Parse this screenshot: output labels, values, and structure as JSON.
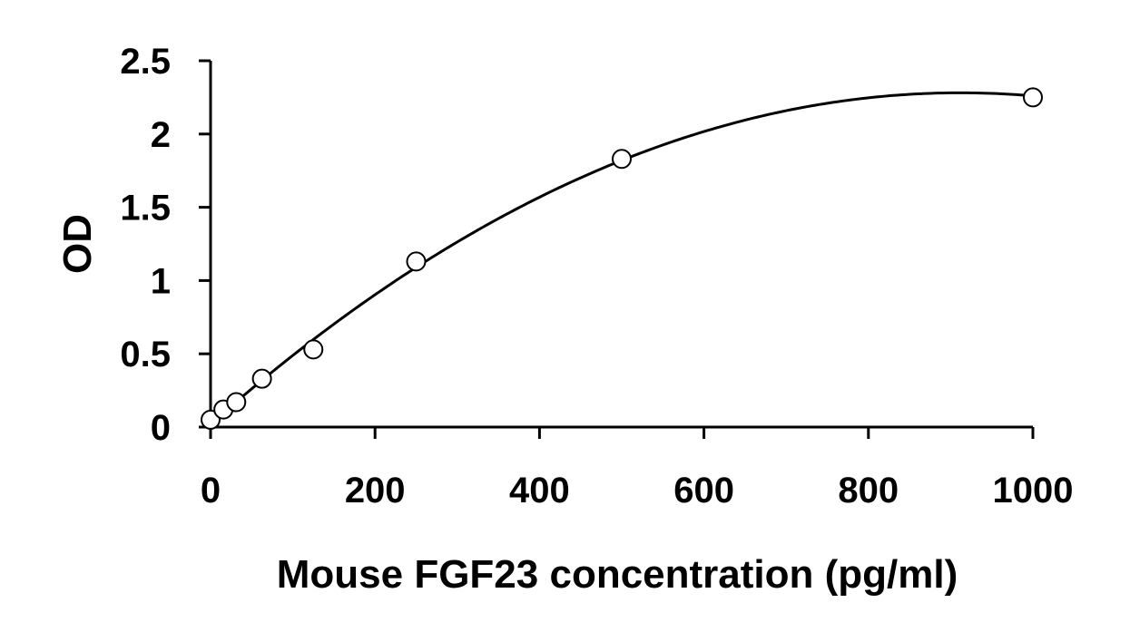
{
  "chart_data": {
    "type": "scatter",
    "title": "",
    "xlabel": "Mouse FGF23 concentration (pg/ml)",
    "ylabel": "OD",
    "xlim": [
      0,
      1000
    ],
    "ylim": [
      0,
      2.5
    ],
    "x_ticks": [
      0,
      200,
      400,
      600,
      800,
      1000
    ],
    "y_ticks": [
      0,
      0.5,
      1,
      1.5,
      2,
      2.5
    ],
    "x_tick_labels": [
      "0",
      "200",
      "400",
      "600",
      "800",
      "1000"
    ],
    "y_tick_labels": [
      "0",
      "0.5",
      "1",
      "1.5",
      "2",
      "2.5"
    ],
    "grid": false,
    "legend": false,
    "series": [
      {
        "marker": "open-circle",
        "x": [
          0,
          15.6,
          31.2,
          62.5,
          125,
          250,
          500,
          1000
        ],
        "y": [
          0.05,
          0.12,
          0.17,
          0.33,
          0.53,
          1.13,
          1.83,
          2.25
        ]
      }
    ],
    "fit_curve": {
      "type": "polynomial",
      "coefficients": [
        0.02,
        0.00496,
        -2.72e-06
      ],
      "color": "#000000"
    }
  }
}
